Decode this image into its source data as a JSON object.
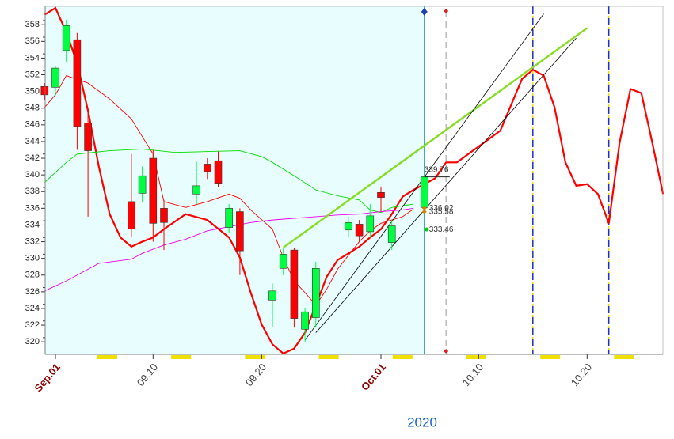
{
  "chart_data": {
    "type": "candlestick",
    "ylim": [
      318.5,
      360.2
    ],
    "yticks": [
      320,
      322,
      324,
      326,
      328,
      330,
      332,
      334,
      336,
      338,
      340,
      342,
      344,
      346,
      348,
      350,
      352,
      354,
      356,
      358
    ],
    "xticks": [
      {
        "value": "09.01",
        "label": "Sep.01"
      },
      "09.10",
      "09.20",
      {
        "value": "10.01",
        "label": "Oct.01"
      },
      "10.10",
      "10.20"
    ],
    "x_axis_label": "2020",
    "candles": {
      "up_color": "#00ff40",
      "down_color": "#ff0000",
      "x": [
        "08.31",
        "09.01",
        "09.02",
        "09.03",
        "09.04",
        "09.08",
        "09.09",
        "09.10",
        "09.11",
        "09.14",
        "09.15",
        "09.16",
        "09.17",
        "09.18",
        "09.21",
        "09.22",
        "09.23",
        "09.24",
        "09.25",
        "09.28",
        "09.29",
        "09.30",
        "10.01",
        "10.02",
        "10.05"
      ],
      "open": [
        350.6,
        350.5,
        354.9,
        356.2,
        346.2,
        336.8,
        337.8,
        342,
        336,
        337.7,
        341.3,
        341.7,
        333.7,
        335.6,
        325,
        328.8,
        331,
        321.5,
        322.9,
        333.4,
        334.1,
        333.2,
        337.9,
        331.9,
        336.1
      ],
      "high": [
        351,
        353,
        358.6,
        357,
        348,
        342.5,
        341,
        343,
        337,
        341.6,
        342,
        342.8,
        336.5,
        336,
        327,
        331.2,
        331.2,
        324,
        329.6,
        335,
        334.6,
        336.5,
        338.6,
        334.6,
        339.8
      ],
      "low": [
        349,
        349.5,
        353.5,
        343,
        335,
        332.6,
        336.8,
        332,
        331,
        336.5,
        339.5,
        338.5,
        333,
        328,
        321.8,
        328,
        321.7,
        320,
        321.7,
        332.5,
        332,
        332.5,
        335.6,
        331,
        336
      ],
      "close": [
        349.6,
        352.8,
        357.9,
        345.8,
        342.9,
        333.5,
        339.9,
        334.2,
        334.3,
        338.7,
        340.4,
        339,
        336,
        330.9,
        326.1,
        330.5,
        322.8,
        323.6,
        328.8,
        334.3,
        332.7,
        335.1,
        337.3,
        333.9,
        339.8
      ]
    },
    "lines": [
      {
        "color": "#ff0000",
        "width": 2.2,
        "x": [
          "08.31",
          "09.01",
          "09.02",
          "09.03",
          "09.04",
          "09.05",
          "09.06",
          "09.07",
          "09.08",
          "09.09",
          "09.10",
          "09.11",
          "09.13",
          "09.15",
          "09.17",
          "09.18",
          "09.19",
          "09.20",
          "09.21",
          "09.22",
          "09.23",
          "09.24",
          "09.25",
          "09.26",
          "09.27",
          "09.29",
          "09.30",
          "10.01",
          "10.02",
          "10.03",
          "10.04",
          "10.06",
          "10.07",
          "10.08",
          "10.10",
          "10.12",
          "10.14",
          "10.15",
          "10.16",
          "10.17",
          "10.18",
          "10.19",
          "10.20",
          "10.21",
          "10.22",
          "10.23",
          "10.24",
          "10.25",
          "10.26",
          "10.27"
        ],
        "values": [
          359.2,
          360,
          357.1,
          353.4,
          347.7,
          341,
          335.3,
          332.5,
          331.4,
          332,
          332.5,
          333.5,
          335.3,
          334.6,
          332.5,
          330.1,
          325.9,
          322.1,
          319.7,
          318.6,
          319.2,
          321.1,
          324.4,
          327.8,
          329.8,
          331.4,
          332.5,
          333.5,
          335.3,
          337.4,
          338.2,
          339.6,
          341.5,
          341.5,
          343.4,
          345.3,
          351.5,
          352.6,
          351.9,
          348.1,
          341.5,
          338.7,
          338.9,
          337.7,
          334.2,
          343.9,
          350.3,
          349.8,
          343.9,
          337.7
        ]
      },
      {
        "color": "#ff0000",
        "width": 0.9,
        "x": [
          "08.31",
          "09.01",
          "09.02",
          "09.04",
          "09.06",
          "09.08",
          "09.10",
          "09.11",
          "09.13",
          "09.15",
          "09.17",
          "09.18",
          "09.19",
          "09.21",
          "09.22",
          "09.23",
          "09.24",
          "09.25",
          "09.26",
          "09.27",
          "09.29",
          "09.30",
          "10.01",
          "10.03",
          "10.04"
        ],
        "values": [
          348.1,
          349.6,
          351.9,
          351,
          349.1,
          346.7,
          342.5,
          336.8,
          336.1,
          336.8,
          337.7,
          337.2,
          335.8,
          333.5,
          330.1,
          327.3,
          325.9,
          324.4,
          326.3,
          328.7,
          332,
          333.3,
          334.2,
          335,
          335.9
        ]
      },
      {
        "color": "#00dd00",
        "width": 0.9,
        "x": [
          "08.31",
          "09.02",
          "09.03",
          "09.06",
          "09.09",
          "09.12",
          "09.15",
          "09.18",
          "09.20",
          "09.21",
          "09.23",
          "09.25",
          "09.27",
          "09.29",
          "09.30",
          "10.01",
          "10.02",
          "10.04"
        ],
        "values": [
          339.1,
          341.5,
          342.5,
          342.9,
          343.1,
          342.7,
          342.8,
          342.9,
          342.2,
          341.5,
          339.9,
          338.2,
          337.5,
          337,
          335.8,
          335.5,
          336.1,
          336.5
        ]
      },
      {
        "color": "#ee00ee",
        "width": 0.9,
        "x": [
          "08.31",
          "09.02",
          "09.04",
          "09.05",
          "09.08",
          "09.09",
          "09.11",
          "09.13",
          "09.15",
          "09.17",
          "09.19",
          "09.21",
          "09.23",
          "09.25",
          "09.27",
          "09.29",
          "10.01",
          "10.03",
          "10.04"
        ],
        "values": [
          326.1,
          327.3,
          328.7,
          329.4,
          329.9,
          330.6,
          331.6,
          332.3,
          333.3,
          333.8,
          334.3,
          334.6,
          334.8,
          335,
          335.2,
          335.3,
          335.6,
          335.8,
          336
        ]
      },
      {
        "color": "#88dd22",
        "width": 2.4,
        "x": [
          "09.22",
          "10.20"
        ],
        "values": [
          331.3,
          357.6
        ]
      },
      {
        "color": "#000000",
        "width": 0.8,
        "x": [
          "09.24",
          "10.16"
        ],
        "values": [
          320.2,
          359.3
        ]
      },
      {
        "color": "#000000",
        "width": 0.8,
        "x": [
          "09.25",
          "10.19"
        ],
        "values": [
          321.1,
          356.4
        ]
      }
    ],
    "price_labels": [
      339.76,
      336.02,
      335.58,
      333.46
    ],
    "last_date": "10.05",
    "forecast_marker": "10.07",
    "cycle_dates": [
      "10.15",
      "10.22"
    ]
  }
}
